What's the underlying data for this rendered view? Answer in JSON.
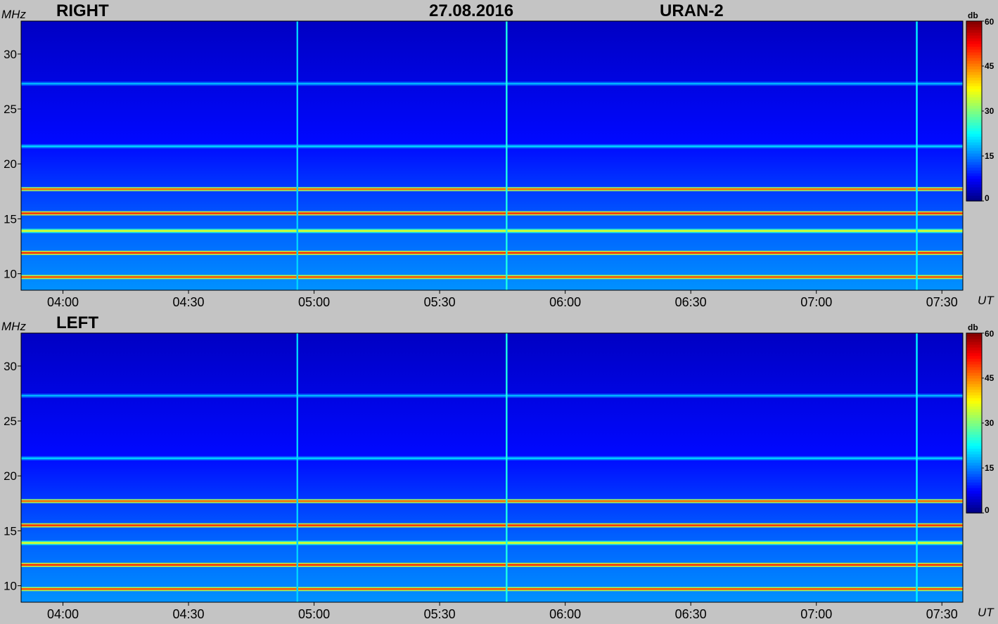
{
  "header": {
    "date": "27.08.2016",
    "instrument": "URAN-2"
  },
  "colors": {
    "background": "#c4c4c4",
    "colormap": "jet"
  },
  "chart_data": [
    {
      "type": "heatmap",
      "title": "RIGHT",
      "xlabel": "UT",
      "ylabel": "MHz",
      "colorbar_label": "db",
      "x_range": [
        "03:50",
        "07:35"
      ],
      "y_range": [
        8.5,
        33
      ],
      "c_range": [
        0,
        60
      ],
      "x_ticks": [
        "04:00",
        "04:30",
        "05:00",
        "05:30",
        "06:00",
        "06:30",
        "07:00",
        "07:30"
      ],
      "y_ticks": [
        10,
        15,
        20,
        25,
        30
      ],
      "c_ticks": [
        0,
        15,
        30,
        45,
        60
      ],
      "bands": [
        {
          "freq": 9.7,
          "level": 48
        },
        {
          "freq": 11.9,
          "level": 50
        },
        {
          "freq": 13.9,
          "level": 36
        },
        {
          "freq": 15.5,
          "level": 50
        },
        {
          "freq": 17.7,
          "level": 46
        },
        {
          "freq": 21.6,
          "level": 20
        },
        {
          "freq": 27.3,
          "level": 18
        }
      ],
      "bursts": [
        {
          "time": "04:56",
          "level": 20
        },
        {
          "time": "05:46",
          "level": 24
        },
        {
          "time": "07:24",
          "level": 22
        }
      ]
    },
    {
      "type": "heatmap",
      "title": "LEFT",
      "xlabel": "UT",
      "ylabel": "MHz",
      "colorbar_label": "db",
      "x_range": [
        "03:50",
        "07:35"
      ],
      "y_range": [
        8.5,
        33
      ],
      "c_range": [
        0,
        60
      ],
      "x_ticks": [
        "04:00",
        "04:30",
        "05:00",
        "05:30",
        "06:00",
        "06:30",
        "07:00",
        "07:30"
      ],
      "y_ticks": [
        10,
        15,
        20,
        25,
        30
      ],
      "c_ticks": [
        0,
        15,
        30,
        45,
        60
      ],
      "bands": [
        {
          "freq": 9.7,
          "level": 48
        },
        {
          "freq": 11.9,
          "level": 50
        },
        {
          "freq": 13.9,
          "level": 36
        },
        {
          "freq": 15.5,
          "level": 50
        },
        {
          "freq": 17.7,
          "level": 46
        },
        {
          "freq": 21.6,
          "level": 20
        },
        {
          "freq": 27.3,
          "level": 18
        }
      ],
      "bursts": [
        {
          "time": "04:56",
          "level": 20
        },
        {
          "time": "05:46",
          "level": 24
        },
        {
          "time": "07:24",
          "level": 22
        }
      ]
    }
  ]
}
